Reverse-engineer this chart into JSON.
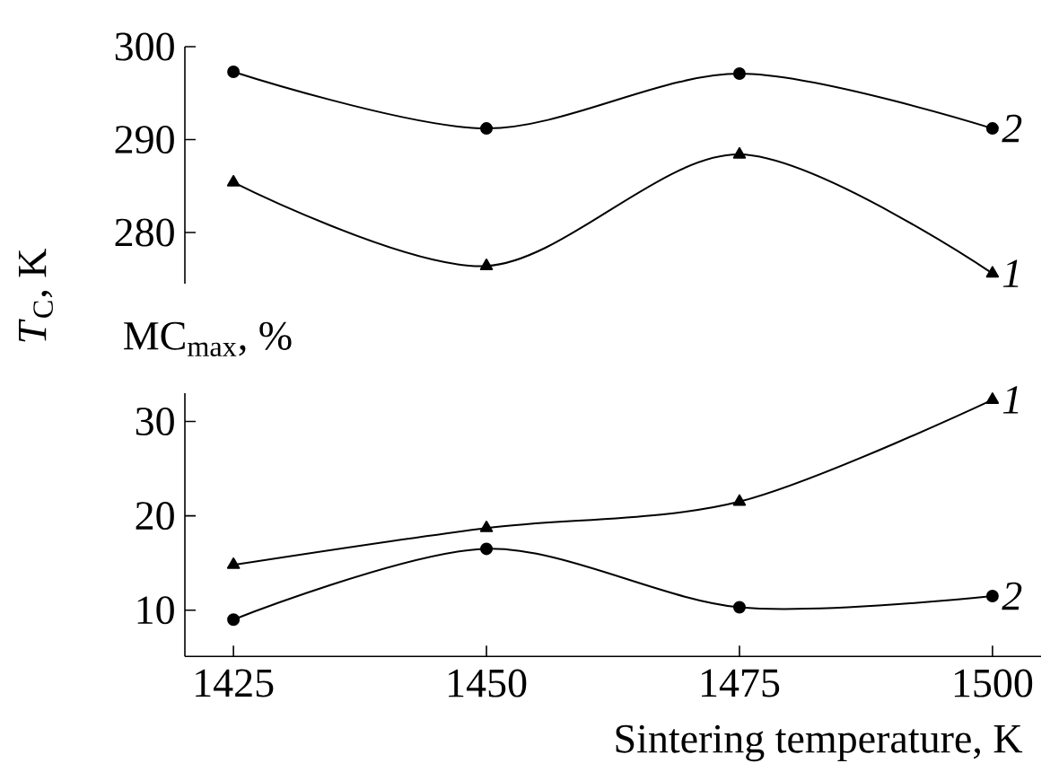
{
  "chart_data": [
    {
      "type": "line",
      "ylabel": "*T*$_{C}$, K",
      "x": [
        1425,
        1450,
        1475,
        1500
      ],
      "ylim": [
        274.5,
        300
      ],
      "yticks": [
        280,
        290,
        300
      ],
      "tick_labels": "y",
      "series": [
        {
          "name": "1",
          "color": "#000000",
          "marker": "triangle",
          "values": [
            285.4,
            276.4,
            288.4,
            275.6
          ]
        },
        {
          "name": "2",
          "color": "#000000",
          "marker": "circle",
          "values": [
            297.3,
            291.2,
            297.1,
            291.2
          ]
        }
      ]
    },
    {
      "type": "line",
      "ylabel": "MC$_{max}$, %",
      "xlabel": "Sintering temperature, K",
      "x": [
        1425,
        1450,
        1475,
        1500
      ],
      "xlim": [
        1420.2,
        1504.8
      ],
      "xticks": [
        1425,
        1450,
        1475,
        1500
      ],
      "ylim": [
        5.1,
        33
      ],
      "yticks": [
        10,
        20,
        30
      ],
      "series": [
        {
          "name": "1",
          "color": "#000000",
          "marker": "triangle",
          "values": [
            14.8,
            18.7,
            21.5,
            32.3
          ]
        },
        {
          "name": "2",
          "color": "#000000",
          "marker": "circle",
          "values": [
            9.0,
            16.5,
            10.3,
            11.5
          ]
        }
      ]
    }
  ]
}
